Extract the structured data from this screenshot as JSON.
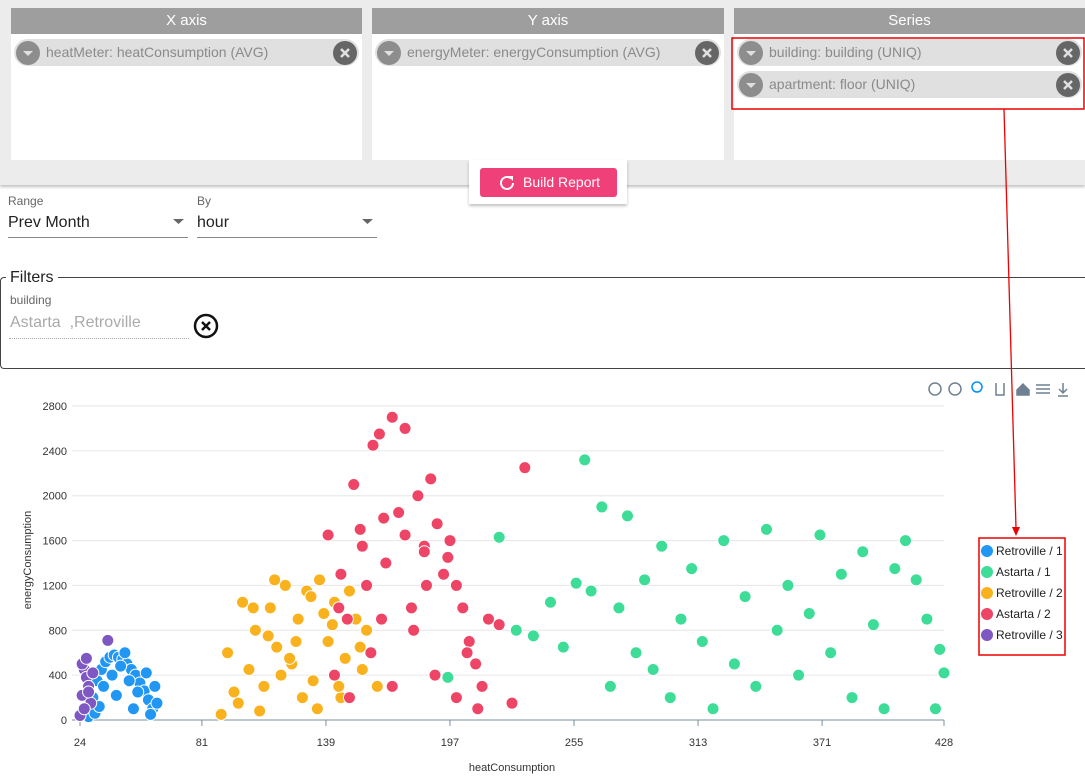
{
  "panels": [
    {
      "header": "X axis",
      "chips": [
        "heatMeter: heatConsumption (AVG)"
      ]
    },
    {
      "header": "Y axis",
      "chips": [
        "energyMeter: energyConsumption (AVG)"
      ]
    },
    {
      "header": "Series",
      "chips": [
        "building: building (UNIQ)",
        "apartment: floor (UNIQ)"
      ]
    }
  ],
  "build_button": "Build Report",
  "range": {
    "label": "Range",
    "value": "Prev Month"
  },
  "by": {
    "label": "By",
    "value": "hour"
  },
  "filters": {
    "legend": "Filters",
    "field": "building",
    "value": "Astarta  ,Retroville"
  },
  "chart_data": {
    "type": "scatter",
    "x_label": "heatConsumption",
    "y_label": "energyConsumption",
    "xlim": [
      24,
      428
    ],
    "xticks": [
      24,
      81,
      139,
      197,
      255,
      313,
      371,
      428
    ],
    "ylim": [
      0,
      2800
    ],
    "yticks": [
      0,
      400,
      800,
      1200,
      1600,
      2000,
      2400,
      2800
    ],
    "grid": true,
    "legend": "right",
    "series": [
      {
        "name": "Retroville / 1",
        "color": "#2196f3",
        "x": [
          28,
          30,
          32,
          34,
          36,
          38,
          40,
          42,
          44,
          46,
          48,
          50,
          52,
          54,
          56,
          58,
          60,
          31,
          35,
          39,
          43,
          47,
          51,
          55,
          59,
          33,
          41,
          49,
          57,
          45
        ],
        "values": [
          30,
          200,
          350,
          450,
          520,
          560,
          580,
          560,
          540,
          500,
          450,
          400,
          330,
          260,
          180,
          100,
          150,
          60,
          300,
          400,
          480,
          350,
          250,
          420,
          300,
          120,
          220,
          100,
          50,
          600
        ]
      },
      {
        "name": "Astarta / 1",
        "color": "#3ddc97",
        "x": [
          196,
          220,
          228,
          236,
          244,
          250,
          256,
          260,
          263,
          268,
          272,
          276,
          280,
          284,
          288,
          292,
          296,
          300,
          305,
          310,
          315,
          320,
          325,
          330,
          335,
          340,
          345,
          350,
          355,
          360,
          365,
          370,
          375,
          380,
          385,
          390,
          395,
          400,
          405,
          410,
          415,
          420,
          424,
          428,
          426
        ],
        "values": [
          380,
          1630,
          800,
          750,
          1050,
          650,
          1220,
          2320,
          1150,
          1900,
          300,
          1000,
          1820,
          600,
          1250,
          450,
          1550,
          200,
          900,
          1350,
          700,
          100,
          1600,
          500,
          1100,
          300,
          1700,
          800,
          1200,
          400,
          950,
          1650,
          600,
          1300,
          200,
          1500,
          850,
          100,
          1350,
          1600,
          1250,
          900,
          100,
          420,
          630
        ]
      },
      {
        "name": "Retroville / 2",
        "color": "#f9b21d",
        "x": [
          90,
          93,
          96,
          100,
          103,
          106,
          110,
          113,
          116,
          120,
          123,
          126,
          130,
          133,
          136,
          140,
          143,
          146,
          150,
          153,
          156,
          160,
          163,
          98,
          108,
          118,
          128,
          138,
          148,
          158,
          105,
          115,
          125,
          135,
          145,
          155,
          112,
          122,
          132,
          142
        ],
        "values": [
          50,
          600,
          250,
          1050,
          450,
          800,
          300,
          1000,
          650,
          1200,
          500,
          900,
          1150,
          350,
          1250,
          700,
          1050,
          200,
          1150,
          900,
          450,
          600,
          300,
          150,
          80,
          400,
          200,
          950,
          550,
          800,
          1000,
          1250,
          700,
          100,
          300,
          650,
          750,
          550,
          1100,
          850
        ]
      },
      {
        "name": "Astarta / 2",
        "color": "#ee4466",
        "x": [
          140,
          143,
          146,
          149,
          152,
          155,
          158,
          161,
          164,
          167,
          170,
          173,
          176,
          179,
          182,
          185,
          188,
          191,
          194,
          197,
          200,
          203,
          206,
          209,
          212,
          215,
          220,
          226,
          232,
          150,
          160,
          170,
          180,
          190,
          200,
          210,
          156,
          166,
          176,
          186,
          196,
          145,
          165,
          185,
          205
        ],
        "values": [
          1650,
          400,
          1300,
          900,
          2100,
          1700,
          1200,
          2450,
          2550,
          1400,
          2700,
          1850,
          2600,
          1000,
          2000,
          1550,
          2150,
          1750,
          1300,
          1600,
          1200,
          1000,
          700,
          500,
          300,
          900,
          850,
          150,
          2250,
          200,
          600,
          300,
          800,
          400,
          200,
          100,
          1550,
          1800,
          1650,
          1200,
          1450,
          1000,
          900,
          1500,
          600
        ]
      },
      {
        "name": "Retroville / 3",
        "color": "#7e57c2",
        "x": [
          24,
          25,
          26,
          27,
          28,
          29,
          26,
          25,
          27,
          30,
          28,
          37
        ],
        "values": [
          40,
          220,
          450,
          380,
          300,
          150,
          100,
          500,
          550,
          420,
          250,
          710
        ]
      }
    ]
  }
}
